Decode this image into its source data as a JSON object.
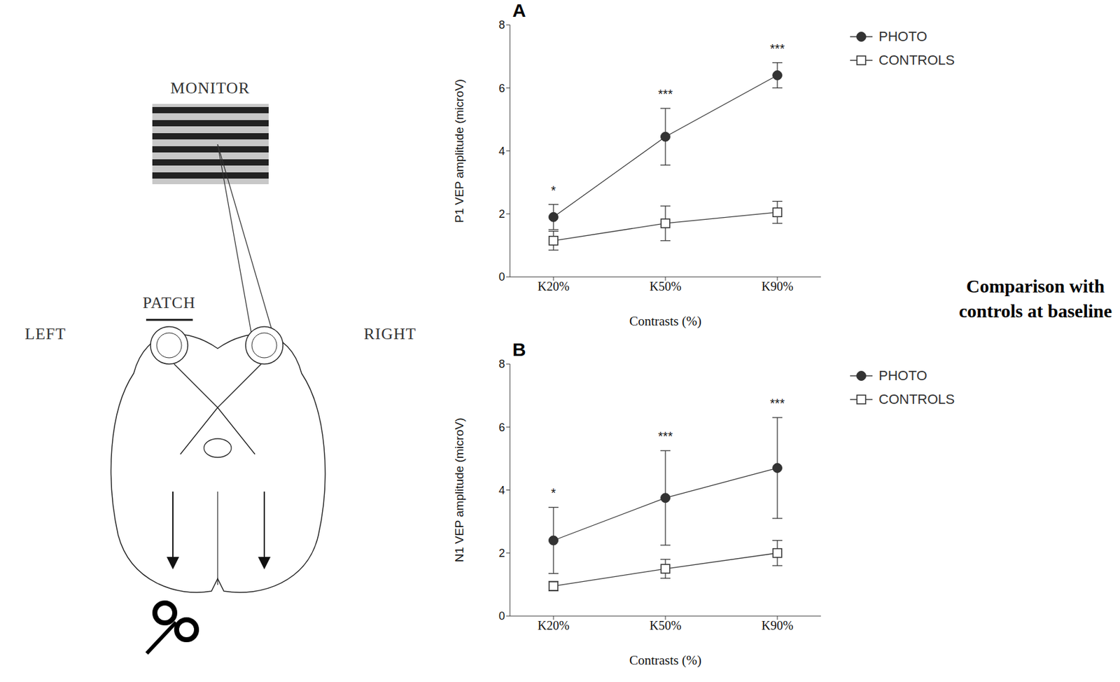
{
  "diagram": {
    "monitor": "MONITOR",
    "patch": "PATCH",
    "left": "LEFT",
    "right": "RIGHT"
  },
  "caption": "Comparison with controls at baseline",
  "chart_data": [
    {
      "type": "line",
      "panel": "A",
      "categories": [
        "K20%",
        "K50%",
        "K90%"
      ],
      "x_label": "Contrasts (%)",
      "y_label": "P1 VEP amplitude (microV)",
      "ylim": [
        0,
        8
      ],
      "yticks": [
        0,
        2,
        4,
        6,
        8
      ],
      "legend": "right",
      "annotations": [
        "*",
        "***",
        "***"
      ],
      "series": [
        {
          "name": "PHOTO",
          "color": "#333333",
          "marker": "circle",
          "values": [
            1.9,
            4.45,
            6.4
          ],
          "errors": [
            0.4,
            0.9,
            0.4
          ]
        },
        {
          "name": "CONTROLS",
          "color": "#333333",
          "marker": "square",
          "values": [
            1.15,
            1.7,
            2.05
          ],
          "errors": [
            0.3,
            0.55,
            0.35
          ]
        }
      ]
    },
    {
      "type": "line",
      "panel": "B",
      "categories": [
        "K20%",
        "K50%",
        "K90%"
      ],
      "x_label": "Contrasts (%)",
      "y_label": "N1 VEP amplitude (microV)",
      "ylim": [
        0,
        8
      ],
      "yticks": [
        0,
        2,
        4,
        6,
        8
      ],
      "legend": "right",
      "annotations": [
        "*",
        "***",
        "***"
      ],
      "series": [
        {
          "name": "PHOTO",
          "color": "#333333",
          "marker": "circle",
          "values": [
            2.4,
            3.75,
            4.7
          ],
          "errors": [
            1.05,
            1.5,
            1.6
          ]
        },
        {
          "name": "CONTROLS",
          "color": "#333333",
          "marker": "square",
          "values": [
            0.95,
            1.5,
            2.0
          ],
          "errors": [
            0.15,
            0.3,
            0.4
          ]
        }
      ]
    }
  ]
}
